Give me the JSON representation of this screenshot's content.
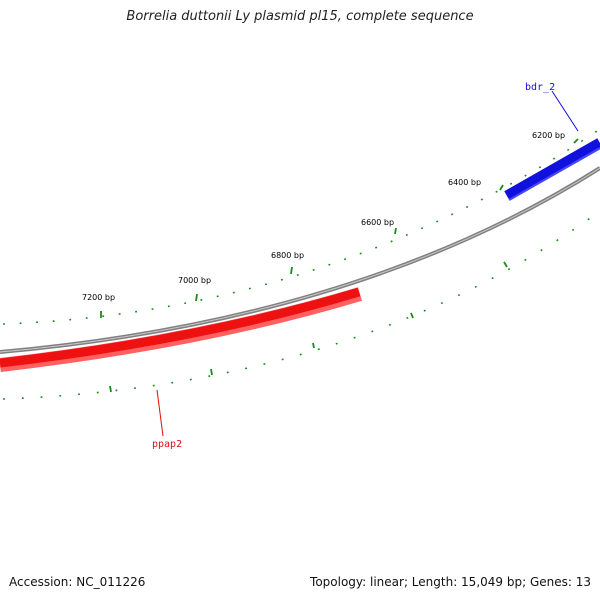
{
  "title": "Borrelia duttonii Ly plasmid pl15, complete sequence",
  "ticks": {
    "color": "#1a8a1a",
    "labels": [
      "6200 bp",
      "6400 bp",
      "6600 bp",
      "6800 bp",
      "7000 bp",
      "7200 bp"
    ]
  },
  "backbone": {
    "color": "#808080"
  },
  "genes": [
    {
      "name": "bdr_2",
      "strand": "forward",
      "color": "#1111dd"
    },
    {
      "name": "ppap2",
      "strand": "reverse",
      "color": "#ee1111"
    }
  ],
  "footer": {
    "accession": "Accession: NC_011226",
    "summary": "Topology: linear; Length: 15,049 bp; Genes: 13"
  }
}
